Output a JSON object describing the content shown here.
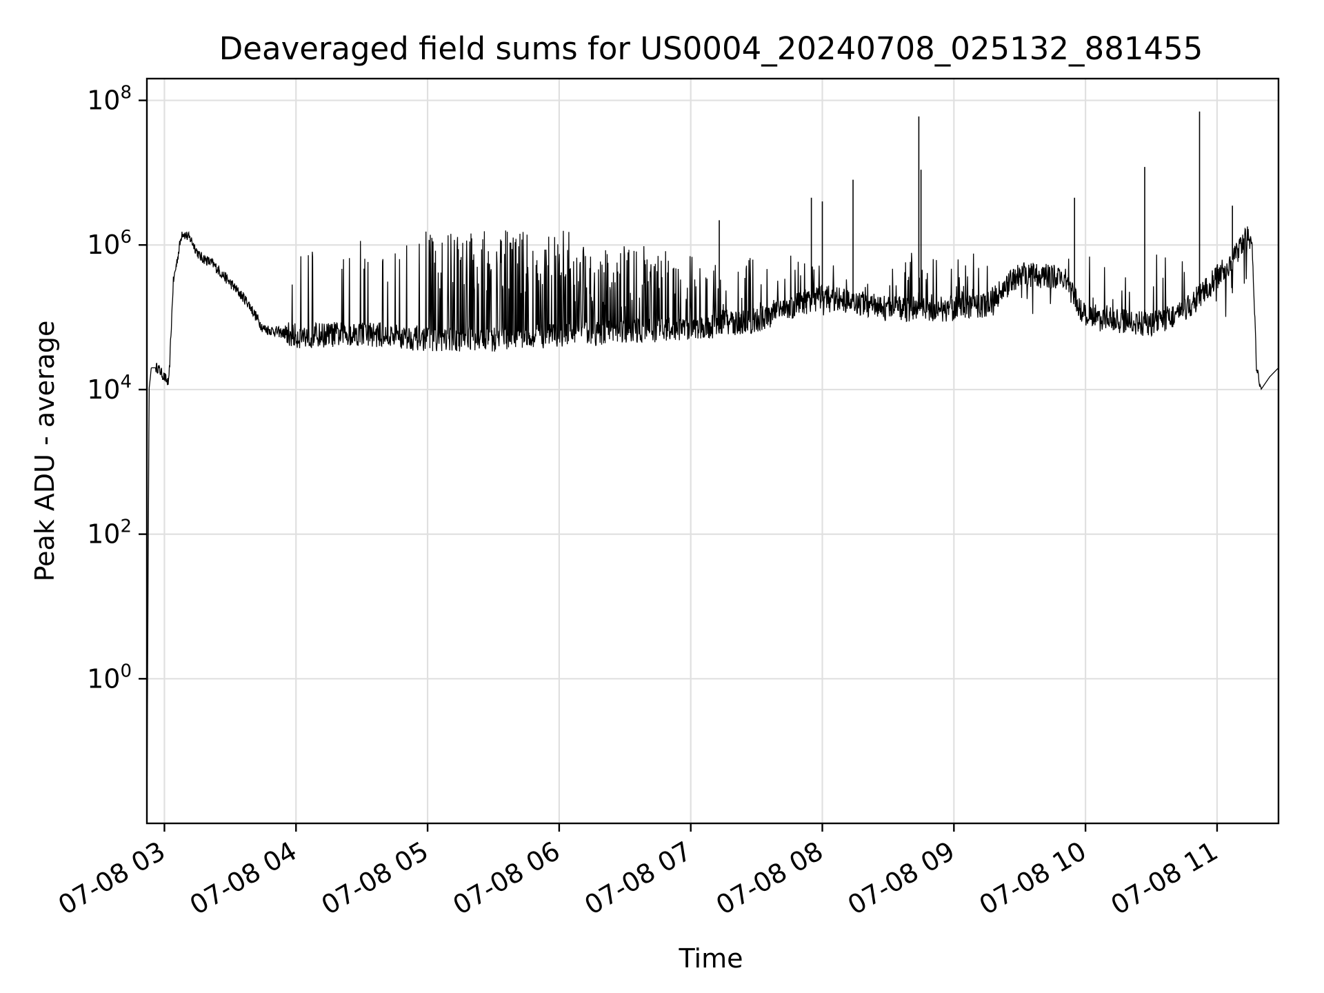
{
  "chart_data": {
    "type": "line",
    "title": "Deaveraged field sums for US0004_20240708_025132_881455",
    "xlabel": "Time",
    "ylabel": "Peak ADU - average",
    "yscale": "log",
    "ylim": [
      0.01,
      200000000
    ],
    "xlim": [
      "07-08 02:52",
      "07-08 11:28"
    ],
    "y_ticks": [
      {
        "base": "10",
        "exp": "0",
        "value": 1
      },
      {
        "base": "10",
        "exp": "2",
        "value": 100
      },
      {
        "base": "10",
        "exp": "4",
        "value": 10000
      },
      {
        "base": "10",
        "exp": "6",
        "value": 1000000
      },
      {
        "base": "10",
        "exp": "8",
        "value": 100000000
      }
    ],
    "x_ticks": [
      {
        "label": "07-08 03",
        "time": "07-08 03:00"
      },
      {
        "label": "07-08 04",
        "time": "07-08 04:00"
      },
      {
        "label": "07-08 05",
        "time": "07-08 05:00"
      },
      {
        "label": "07-08 06",
        "time": "07-08 06:00"
      },
      {
        "label": "07-08 07",
        "time": "07-08 07:00"
      },
      {
        "label": "07-08 08",
        "time": "07-08 08:00"
      },
      {
        "label": "07-08 09",
        "time": "07-08 09:00"
      },
      {
        "label": "07-08 10",
        "time": "07-08 10:00"
      },
      {
        "label": "07-08 11",
        "time": "07-08 11:00"
      }
    ],
    "grid": true,
    "line_color": "#000000",
    "series": [
      {
        "points": [
          {
            "x": "07-08 02:52",
            "y": 0.01
          },
          {
            "x": "07-08 02:53",
            "y": 10000
          },
          {
            "x": "07-08 02:54",
            "y": 20000
          },
          {
            "x": "07-08 02:57",
            "y": 20000
          },
          {
            "x": "07-08 03:02",
            "y": 12000
          },
          {
            "x": "07-08 03:04",
            "y": 300000
          },
          {
            "x": "07-08 03:08",
            "y": 1500000
          },
          {
            "x": "07-08 03:12",
            "y": 1200000
          },
          {
            "x": "07-08 03:16",
            "y": 700000
          },
          {
            "x": "07-08 03:22",
            "y": 550000
          },
          {
            "x": "07-08 03:30",
            "y": 300000
          },
          {
            "x": "07-08 03:38",
            "y": 160000
          },
          {
            "x": "07-08 03:45",
            "y": 70000
          },
          {
            "x": "07-08 04:00",
            "y": 55000
          },
          {
            "x": "07-08 04:30",
            "y": 60000
          },
          {
            "x": "07-08 05:00",
            "y": 50000
          },
          {
            "x": "07-08 05:30",
            "y": 50000
          },
          {
            "x": "07-08 06:00",
            "y": 55000
          },
          {
            "x": "07-08 06:30",
            "y": 65000
          },
          {
            "x": "07-08 07:00",
            "y": 70000
          },
          {
            "x": "07-08 07:30",
            "y": 90000
          },
          {
            "x": "07-08 08:00",
            "y": 200000
          },
          {
            "x": "07-08 08:30",
            "y": 130000
          },
          {
            "x": "07-08 09:00",
            "y": 130000
          },
          {
            "x": "07-08 09:15",
            "y": 150000
          },
          {
            "x": "07-08 09:30",
            "y": 400000
          },
          {
            "x": "07-08 09:50",
            "y": 350000
          },
          {
            "x": "07-08 10:00",
            "y": 100000
          },
          {
            "x": "07-08 10:30",
            "y": 80000
          },
          {
            "x": "07-08 10:45",
            "y": 120000
          },
          {
            "x": "07-08 11:00",
            "y": 350000
          },
          {
            "x": "07-08 11:10",
            "y": 800000
          },
          {
            "x": "07-08 11:14",
            "y": 1400000
          },
          {
            "x": "07-08 11:16",
            "y": 1000000
          },
          {
            "x": "07-08 11:18",
            "y": 20000
          },
          {
            "x": "07-08 11:20",
            "y": 10000
          },
          {
            "x": "07-08 11:24",
            "y": 15000
          },
          {
            "x": "07-08 11:28",
            "y": 20000
          }
        ],
        "spikes": [
          {
            "x": "07-08 08:44",
            "y": 60000000
          },
          {
            "x": "07-08 08:45",
            "y": 11000000
          },
          {
            "x": "07-08 10:52",
            "y": 70000000
          },
          {
            "x": "07-08 10:27",
            "y": 12000000
          },
          {
            "x": "07-08 08:14",
            "y": 8000000
          },
          {
            "x": "07-08 07:55",
            "y": 4500000
          },
          {
            "x": "07-08 09:55",
            "y": 4500000
          },
          {
            "x": "07-08 11:07",
            "y": 3500000
          },
          {
            "x": "07-08 08:00",
            "y": 4000000
          },
          {
            "x": "07-08 07:13",
            "y": 2200000
          }
        ]
      }
    ]
  }
}
